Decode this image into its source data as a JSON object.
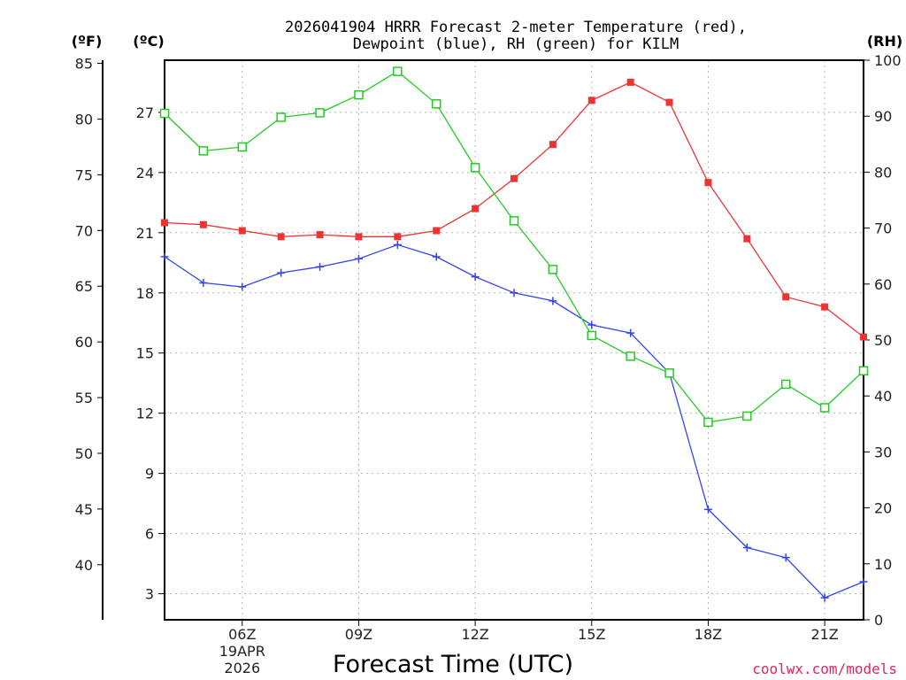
{
  "chart_data": {
    "type": "line",
    "title_line1": "2026041904 HRRR Forecast 2-meter Temperature (red),",
    "title_line2": "Dewpoint (blue), RH (green) for KILM",
    "xlabel": "Forecast Time (UTC)",
    "credit": "coolwx.com/models",
    "units": {
      "fahrenheit": "(ºF)",
      "celsius": "(ºC)",
      "rh": "(RH)"
    },
    "x_hours": [
      4,
      5,
      6,
      7,
      8,
      9,
      10,
      11,
      12,
      13,
      14,
      15,
      16,
      17,
      18,
      19,
      20,
      21,
      22
    ],
    "xlim": [
      4,
      22
    ],
    "x_ticks": [
      {
        "hour": 6,
        "label": "06Z",
        "date_line1": "19APR",
        "date_line2": "2026"
      },
      {
        "hour": 9,
        "label": "09Z"
      },
      {
        "hour": 12,
        "label": "12Z"
      },
      {
        "hour": 15,
        "label": "15Z"
      },
      {
        "hour": 18,
        "label": "18Z"
      },
      {
        "hour": 21,
        "label": "21Z"
      }
    ],
    "ylim_celsius": [
      1.7,
      29.6
    ],
    "yticks_celsius": [
      3,
      6,
      9,
      12,
      15,
      18,
      21,
      24,
      27
    ],
    "yticks_fahrenheit": [
      40,
      45,
      50,
      55,
      60,
      65,
      70,
      75,
      80,
      85
    ],
    "ylim_rh": [
      0,
      100
    ],
    "yticks_rh": [
      0,
      10,
      20,
      30,
      40,
      50,
      60,
      70,
      80,
      90,
      100
    ],
    "series": [
      {
        "name": "Temperature",
        "unit": "°C",
        "axis": "celsius",
        "color": "#ee3333",
        "marker": "filled-square",
        "values": [
          21.5,
          21.4,
          21.1,
          20.8,
          20.9,
          20.8,
          20.8,
          21.1,
          22.2,
          23.7,
          25.4,
          27.6,
          28.5,
          27.5,
          23.5,
          20.7,
          17.8,
          17.3,
          15.8
        ]
      },
      {
        "name": "Dewpoint",
        "unit": "°C",
        "axis": "celsius",
        "color": "#3344ee",
        "marker": "plus",
        "values": [
          19.8,
          18.5,
          18.3,
          19.0,
          19.3,
          19.7,
          20.4,
          19.8,
          18.8,
          18.0,
          17.6,
          16.4,
          16.0,
          14.0,
          7.2,
          5.3,
          4.8,
          2.8,
          3.6
        ]
      },
      {
        "name": "Relative Humidity",
        "unit": "%",
        "axis": "rh",
        "color": "#22cc22",
        "marker": "open-square",
        "values": [
          90.5,
          83.8,
          84.5,
          89.8,
          90.6,
          93.8,
          98.0,
          92.2,
          80.8,
          71.3,
          62.6,
          50.8,
          47.1,
          44.1,
          35.3,
          36.4,
          42.1,
          37.9,
          44.5
        ]
      }
    ]
  }
}
